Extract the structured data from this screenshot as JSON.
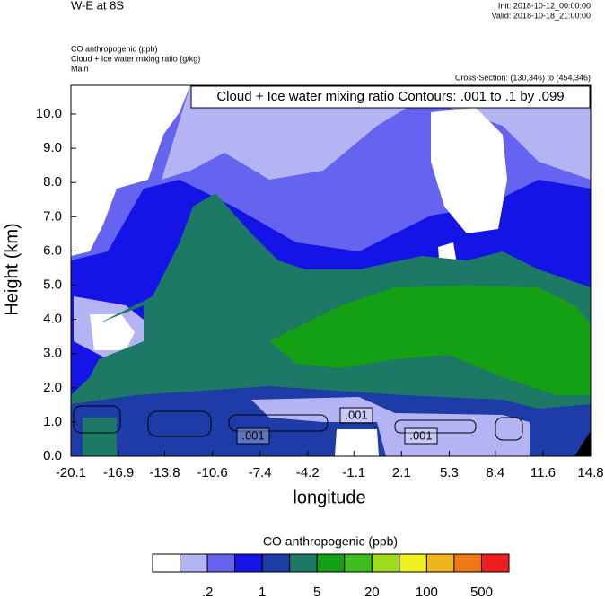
{
  "chart_data": {
    "type": "contour",
    "title": "W-E at 8S",
    "init": "Init: 2018-10-12_00:00:00",
    "valid": "Valid: 2018-10-18_21:00:00",
    "fields": [
      "CO anthropogenic   (ppb)",
      "Cloud + Ice water mixing ratio   (g/kg)",
      "Main"
    ],
    "cross_section": "Cross-Section: (130,346) to (454,346)",
    "contour_note": "Cloud + Ice water mixing ratio Contours: .001 to .1 by .099",
    "contour_labels": [
      ".001",
      ".001",
      ".001"
    ],
    "xlabel": "longitude",
    "ylabel": "Height (km)",
    "xlim": [
      -20.1,
      14.8
    ],
    "xticks": [
      -20.1,
      -16.9,
      -13.8,
      -10.6,
      -7.4,
      -4.2,
      -1.1,
      2.1,
      5.3,
      8.4,
      11.6,
      14.8
    ],
    "ylim": [
      0,
      10.84
    ],
    "yticks": [
      {
        "value": 0,
        "label": "0.0"
      },
      {
        "value": 1,
        "label": "1.0"
      },
      {
        "value": 2,
        "label": "2.0"
      },
      {
        "value": 3,
        "label": "3.0"
      },
      {
        "value": 4,
        "label": "4.0"
      },
      {
        "value": 5,
        "label": "5.0"
      },
      {
        "value": 6,
        "label": "6.0"
      },
      {
        "value": 7,
        "label": "7.0"
      },
      {
        "value": 8,
        "label": "8.0"
      },
      {
        "value": 9,
        "label": "9.0"
      },
      {
        "value": 10,
        "label": "10.0"
      }
    ],
    "colorbar": {
      "title": "CO anthropogenic  (ppb)",
      "colors": [
        "#ffffff",
        "#b4b4f5",
        "#6464f0",
        "#1414e6",
        "#1e3ca8",
        "#1e7866",
        "#14a014",
        "#3cbe1e",
        "#a0dc1e",
        "#f0f01e",
        "#f0b41e",
        "#f07814",
        "#f01e1e"
      ],
      "labels": [
        {
          "value": 0.2,
          "label": ".2"
        },
        1,
        5,
        20,
        100,
        500
      ]
    }
  }
}
